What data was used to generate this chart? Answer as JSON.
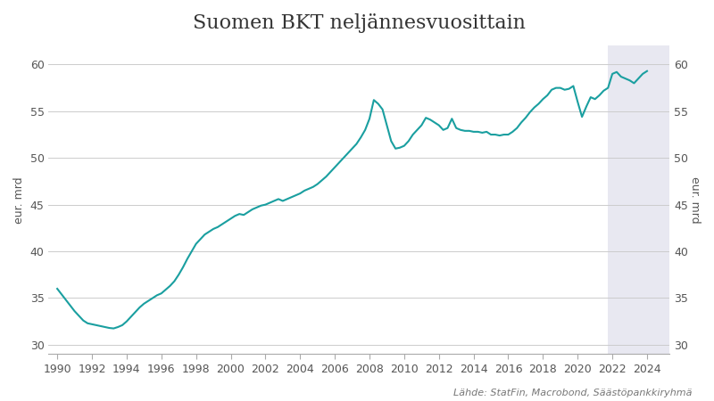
{
  "title": "Suomen BKT neljännesvuosittain",
  "ylabel": "eur. mrd",
  "source": "Lähde: StatFin, Macrobond, Säästöpankkiryhmä",
  "ylim": [
    29,
    62
  ],
  "yticks": [
    30,
    35,
    40,
    45,
    50,
    55,
    60
  ],
  "line_color": "#1a9fa0",
  "background_color": "#ffffff",
  "shade_start": 2021.75,
  "shade_end": 2025.3,
  "shade_color": "#cccde0",
  "shade_alpha": 0.45,
  "title_fontsize": 16,
  "label_fontsize": 9,
  "source_fontsize": 8,
  "gdp_data": [
    [
      1990.0,
      36.0
    ],
    [
      1990.25,
      35.4
    ],
    [
      1990.5,
      34.8
    ],
    [
      1990.75,
      34.2
    ],
    [
      1991.0,
      33.6
    ],
    [
      1991.25,
      33.1
    ],
    [
      1991.5,
      32.6
    ],
    [
      1991.75,
      32.3
    ],
    [
      1992.0,
      32.2
    ],
    [
      1992.25,
      32.1
    ],
    [
      1992.5,
      32.0
    ],
    [
      1992.75,
      31.9
    ],
    [
      1993.0,
      31.8
    ],
    [
      1993.25,
      31.75
    ],
    [
      1993.5,
      31.9
    ],
    [
      1993.75,
      32.1
    ],
    [
      1994.0,
      32.5
    ],
    [
      1994.25,
      33.0
    ],
    [
      1994.5,
      33.5
    ],
    [
      1994.75,
      34.0
    ],
    [
      1995.0,
      34.4
    ],
    [
      1995.25,
      34.7
    ],
    [
      1995.5,
      35.0
    ],
    [
      1995.75,
      35.3
    ],
    [
      1996.0,
      35.5
    ],
    [
      1996.25,
      35.9
    ],
    [
      1996.5,
      36.3
    ],
    [
      1996.75,
      36.8
    ],
    [
      1997.0,
      37.5
    ],
    [
      1997.25,
      38.3
    ],
    [
      1997.5,
      39.2
    ],
    [
      1997.75,
      40.0
    ],
    [
      1998.0,
      40.8
    ],
    [
      1998.25,
      41.3
    ],
    [
      1998.5,
      41.8
    ],
    [
      1998.75,
      42.1
    ],
    [
      1999.0,
      42.4
    ],
    [
      1999.25,
      42.6
    ],
    [
      1999.5,
      42.9
    ],
    [
      1999.75,
      43.2
    ],
    [
      2000.0,
      43.5
    ],
    [
      2000.25,
      43.8
    ],
    [
      2000.5,
      44.0
    ],
    [
      2000.75,
      43.9
    ],
    [
      2001.0,
      44.2
    ],
    [
      2001.25,
      44.5
    ],
    [
      2001.5,
      44.7
    ],
    [
      2001.75,
      44.9
    ],
    [
      2002.0,
      45.0
    ],
    [
      2002.25,
      45.2
    ],
    [
      2002.5,
      45.4
    ],
    [
      2002.75,
      45.6
    ],
    [
      2003.0,
      45.4
    ],
    [
      2003.25,
      45.6
    ],
    [
      2003.5,
      45.8
    ],
    [
      2003.75,
      46.0
    ],
    [
      2004.0,
      46.2
    ],
    [
      2004.25,
      46.5
    ],
    [
      2004.5,
      46.7
    ],
    [
      2004.75,
      46.9
    ],
    [
      2005.0,
      47.2
    ],
    [
      2005.25,
      47.6
    ],
    [
      2005.5,
      48.0
    ],
    [
      2005.75,
      48.5
    ],
    [
      2006.0,
      49.0
    ],
    [
      2006.25,
      49.5
    ],
    [
      2006.5,
      50.0
    ],
    [
      2006.75,
      50.5
    ],
    [
      2007.0,
      51.0
    ],
    [
      2007.25,
      51.5
    ],
    [
      2007.5,
      52.2
    ],
    [
      2007.75,
      53.0
    ],
    [
      2008.0,
      54.2
    ],
    [
      2008.25,
      56.2
    ],
    [
      2008.5,
      55.8
    ],
    [
      2008.75,
      55.2
    ],
    [
      2009.0,
      53.5
    ],
    [
      2009.25,
      51.8
    ],
    [
      2009.5,
      51.0
    ],
    [
      2009.75,
      51.1
    ],
    [
      2010.0,
      51.3
    ],
    [
      2010.25,
      51.8
    ],
    [
      2010.5,
      52.5
    ],
    [
      2010.75,
      53.0
    ],
    [
      2011.0,
      53.5
    ],
    [
      2011.25,
      54.3
    ],
    [
      2011.5,
      54.1
    ],
    [
      2011.75,
      53.8
    ],
    [
      2012.0,
      53.5
    ],
    [
      2012.25,
      53.0
    ],
    [
      2012.5,
      53.2
    ],
    [
      2012.75,
      54.2
    ],
    [
      2013.0,
      53.2
    ],
    [
      2013.25,
      53.0
    ],
    [
      2013.5,
      52.9
    ],
    [
      2013.75,
      52.9
    ],
    [
      2014.0,
      52.8
    ],
    [
      2014.25,
      52.8
    ],
    [
      2014.5,
      52.7
    ],
    [
      2014.75,
      52.8
    ],
    [
      2015.0,
      52.5
    ],
    [
      2015.25,
      52.5
    ],
    [
      2015.5,
      52.4
    ],
    [
      2015.75,
      52.5
    ],
    [
      2016.0,
      52.5
    ],
    [
      2016.25,
      52.8
    ],
    [
      2016.5,
      53.2
    ],
    [
      2016.75,
      53.8
    ],
    [
      2017.0,
      54.3
    ],
    [
      2017.25,
      54.9
    ],
    [
      2017.5,
      55.4
    ],
    [
      2017.75,
      55.8
    ],
    [
      2018.0,
      56.3
    ],
    [
      2018.25,
      56.7
    ],
    [
      2018.5,
      57.3
    ],
    [
      2018.75,
      57.5
    ],
    [
      2019.0,
      57.5
    ],
    [
      2019.25,
      57.3
    ],
    [
      2019.5,
      57.4
    ],
    [
      2019.75,
      57.7
    ],
    [
      2020.0,
      56.0
    ],
    [
      2020.25,
      54.4
    ],
    [
      2020.5,
      55.5
    ],
    [
      2020.75,
      56.5
    ],
    [
      2021.0,
      56.3
    ],
    [
      2021.25,
      56.7
    ],
    [
      2021.5,
      57.2
    ],
    [
      2021.75,
      57.5
    ],
    [
      2022.0,
      59.0
    ],
    [
      2022.25,
      59.2
    ],
    [
      2022.5,
      58.7
    ],
    [
      2022.75,
      58.5
    ],
    [
      2023.0,
      58.3
    ],
    [
      2023.25,
      58.0
    ],
    [
      2023.5,
      58.5
    ],
    [
      2023.75,
      59.0
    ],
    [
      2024.0,
      59.3
    ]
  ],
  "xticks": [
    1990,
    1992,
    1994,
    1996,
    1998,
    2000,
    2002,
    2004,
    2006,
    2008,
    2010,
    2012,
    2014,
    2016,
    2018,
    2020,
    2022,
    2024
  ],
  "xlim": [
    1989.5,
    2025.3
  ]
}
